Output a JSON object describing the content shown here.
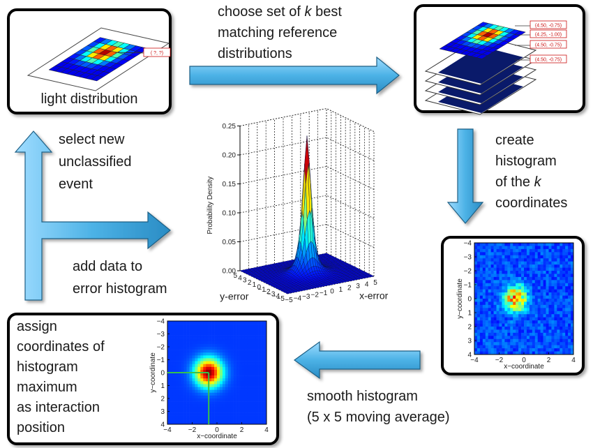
{
  "boxes": {
    "light_distribution": {
      "caption": "light distribution",
      "unknown_tag": "( ?, ?)"
    },
    "reference": {
      "tags": [
        "(4.50, -0.75)",
        "(4.25, -1.00)",
        "(4.50, -0.75)",
        "(4.50, -0.75)"
      ]
    },
    "assign": {
      "lines": [
        "assign",
        "coordinates of",
        "histogram",
        "maximum",
        "as interaction",
        "position"
      ]
    }
  },
  "steps": {
    "choose": {
      "lines": [
        "choose set of ",
        "k",
        " best",
        "matching reference",
        "distributions"
      ]
    },
    "create": {
      "lines": [
        "create",
        "histogram",
        "of the ",
        "k",
        "coordinates"
      ]
    },
    "smooth": {
      "lines": [
        "smooth histogram",
        "(5 x 5 moving average)"
      ]
    },
    "select": {
      "lines": [
        "select new",
        "unclassified",
        "event"
      ]
    },
    "add": {
      "lines": [
        "add data to",
        "error histogram"
      ]
    }
  },
  "histogram_raw": {
    "ylabel": "y−coordinate",
    "xlabel": "x−coordinate",
    "yticks": [
      "−4",
      "−3",
      "−2",
      "−1",
      "0",
      "1",
      "2",
      "3",
      "4"
    ],
    "xticks": [
      "−4",
      "−2",
      "0",
      "2",
      "4"
    ]
  },
  "histogram_smooth": {
    "ylabel": "y−coordinate",
    "xlabel": "x−coordinate",
    "yticks": [
      "−4",
      "−3",
      "−2",
      "−1",
      "0",
      "1",
      "2",
      "3",
      "4"
    ],
    "xticks": [
      "−4",
      "−2",
      "0",
      "2",
      "4"
    ]
  },
  "surface": {
    "zlabel": "Probability Density",
    "zticks": [
      "0.25",
      "0.20",
      "0.15",
      "0.10",
      "0.05",
      "0.00"
    ],
    "ylabel": "y-error",
    "xlabel": "x-error",
    "yticks": [
      "5",
      "4",
      "3",
      "2",
      "1",
      "0",
      "−1",
      "−2",
      "−3",
      "−4",
      "−5"
    ],
    "xticks": [
      "−5",
      "−4",
      "−3",
      "−2",
      "−1",
      "0",
      "1",
      "2",
      "3",
      "4",
      "5"
    ]
  },
  "colors": {
    "arrow": "#55b8e6",
    "frame": "#000000",
    "tag": "#cc1111",
    "marker": "#36c24a"
  }
}
